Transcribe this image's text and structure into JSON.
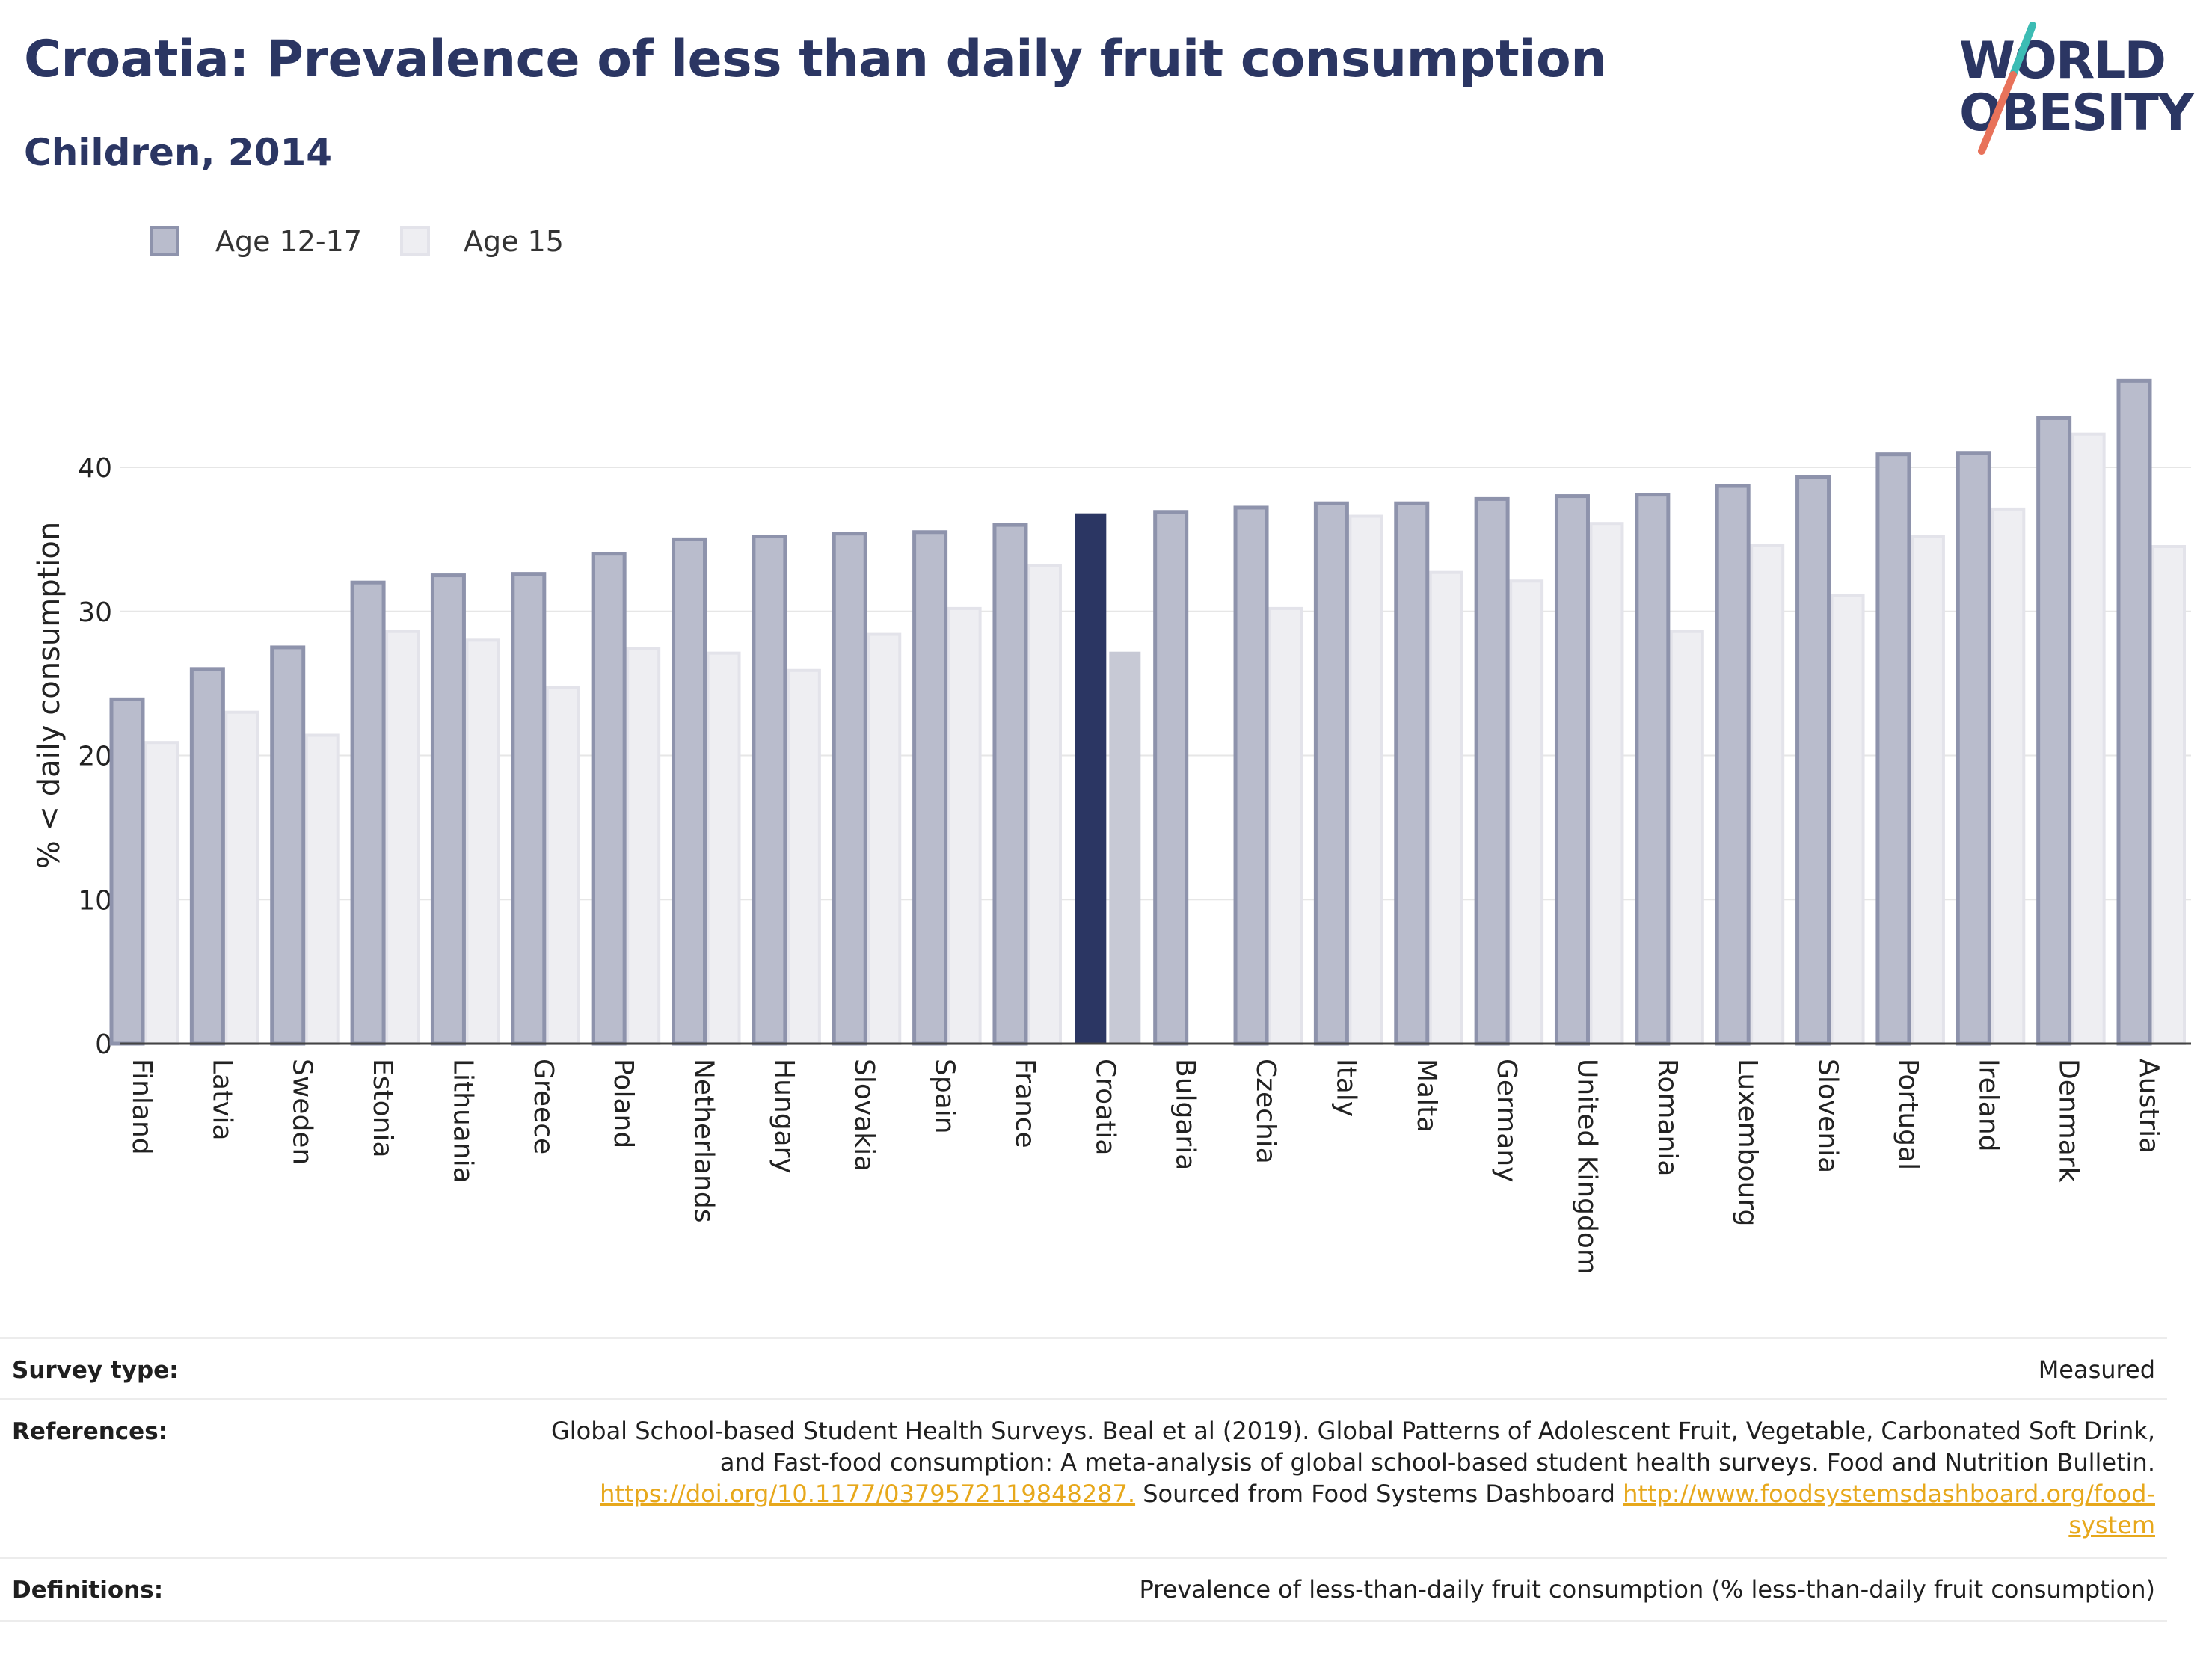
{
  "header": {
    "title": "Croatia: Prevalence of less than daily fruit consumption",
    "subtitle": "Children, 2014"
  },
  "logo": {
    "line1": "WORLD",
    "line2": "OBESITY",
    "colors": {
      "navy": "#2b3663",
      "teal": "#3cbcb4",
      "coral": "#e8725a"
    }
  },
  "colors": {
    "series1_fill": "#b9bccc",
    "series1_stroke": "#8e93ac",
    "series2_fill": "#eeeef2",
    "series2_stroke": "#e3e3ea",
    "highlight1": "#2b3663",
    "highlight2": "#c7c9d5",
    "grid": "#e6e6e6",
    "axis": "#444444"
  },
  "chart_data": {
    "type": "bar",
    "highlight": "Croatia",
    "categories": [
      "Finland",
      "Latvia",
      "Sweden",
      "Estonia",
      "Lithuania",
      "Greece",
      "Poland",
      "Netherlands",
      "Hungary",
      "Slovakia",
      "Spain",
      "France",
      "Croatia",
      "Bulgaria",
      "Czechia",
      "Italy",
      "Malta",
      "Germany",
      "United Kingdom",
      "Romania",
      "Luxembourg",
      "Slovenia",
      "Portugal",
      "Ireland",
      "Denmark",
      "Austria"
    ],
    "series": [
      {
        "name": "Age 12-17",
        "values": [
          23.9,
          26.0,
          27.5,
          32.0,
          32.5,
          32.6,
          34.0,
          35.0,
          35.2,
          35.4,
          35.5,
          36.0,
          36.8,
          36.9,
          37.2,
          37.5,
          37.5,
          37.8,
          38.0,
          38.1,
          38.7,
          39.3,
          40.9,
          41.0,
          43.4,
          46.0
        ]
      },
      {
        "name": "Age 15",
        "values": [
          20.9,
          23.0,
          21.4,
          28.6,
          28.0,
          24.7,
          27.4,
          27.1,
          25.9,
          28.4,
          30.2,
          33.2,
          27.2,
          null,
          30.2,
          36.6,
          32.7,
          32.1,
          36.1,
          28.6,
          34.6,
          31.1,
          35.2,
          37.1,
          42.3,
          34.5
        ]
      }
    ],
    "xlabel": "",
    "ylabel": "% < daily consumption",
    "ylim": [
      0,
      50
    ],
    "yticks": [
      0,
      10,
      20,
      30,
      40
    ],
    "grid": true,
    "legend_position": "top-left"
  },
  "meta": {
    "survey_type_label": "Survey type:",
    "survey_type_value": "Measured",
    "references_label": "References:",
    "references_line1": "Global School-based Student Health Surveys. Beal et al (2019). Global Patterns of Adolescent Fruit, Vegetable, Carbonated Soft Drink,",
    "references_line2": "and Fast-food consumption: A meta-analysis of global school-based student health surveys. Food and Nutrition Bulletin.",
    "references_link1": "https://doi.org/10.1177/0379572119848287.",
    "references_mid": " Sourced from Food Systems Dashboard ",
    "references_link2a": "http://www.foodsystemsdashboard.org/food-",
    "references_link2b": "system",
    "definitions_label": "Definitions:",
    "definitions_value": "Prevalence of less-than-daily fruit consumption (% less-than-daily fruit consumption)"
  }
}
